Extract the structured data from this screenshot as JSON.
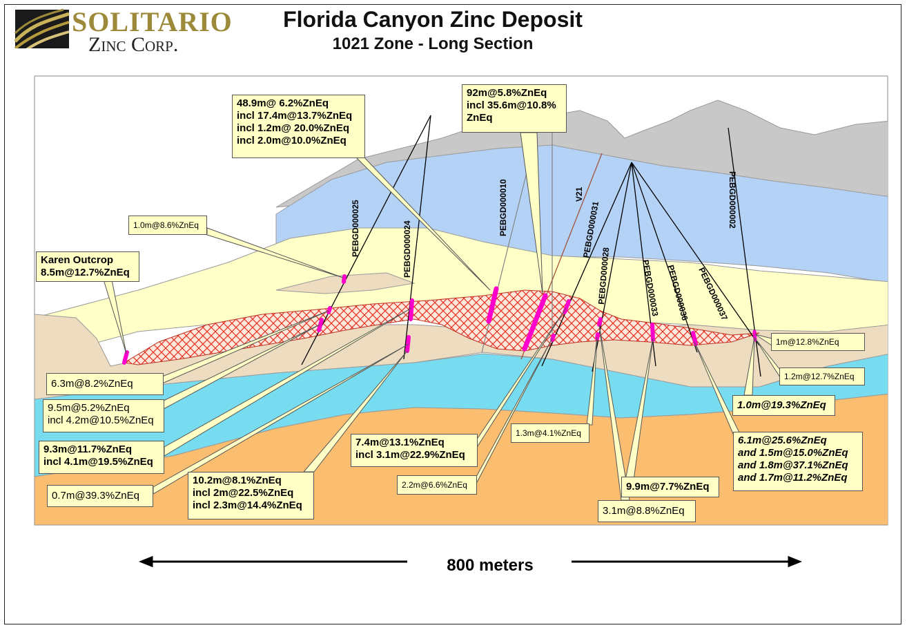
{
  "header": {
    "logo_line1": "SOLITARIO",
    "logo_line2": "Zinc Corp.",
    "title": "Florida Canyon Zinc Deposit",
    "subtitle": "1021 Zone - Long Section"
  },
  "drill_holes": [
    "PEBGD000025",
    "PEBGD000024",
    "PEBGD000010",
    "V21",
    "PEBGD000031",
    "PEBGD000028",
    "PEBGD000033",
    "PEBGD000036",
    "PEBGD000037",
    "PEBGD000002"
  ],
  "callouts": {
    "c489": "48.9m@ 6.2%ZnEq\nincl 17.4m@13.7%ZnEq\nincl 1.2m@ 20.0%ZnEq\nincl 2.0m@10.0%ZnEq",
    "c92": "92m@5.8%ZnEq\nincl 35.6m@10.8%\nZnEq",
    "c10_86": "1.0m@8.6%ZnEq",
    "karen": "Karen Outcrop\n8.5m@12.7%ZnEq",
    "c63": "6.3m@8.2%ZnEq",
    "c95": "9.5m@5.2%ZnEq\nincl 4.2m@10.5%ZnEq",
    "c93": "9.3m@11.7%ZnEq\nincl 4.1m@19.5%ZnEq",
    "c07": "0.7m@39.3%ZnEq",
    "c102": "10.2m@8.1%ZnEq\nincl 2m@22.5%ZnEq\nincl 2.3m@14.4%ZnEq",
    "c74": "7.4m@13.1%ZnEq\nincl 3.1m@22.9%ZnEq",
    "c22": "2.2m@6.6%ZnEq",
    "c13": "1.3m@4.1%ZnEq",
    "c99": "9.9m@7.7%ZnEq",
    "c31": "3.1m@8.8%ZnEq",
    "c61": "6.1m@25.6%ZnEq\nand 1.5m@15.0%ZnEq\nand 1.8m@37.1%ZnEq\nand 1.7m@11.2%ZnEq",
    "c10_193": "1.0m@19.3%ZnEq",
    "c10_128": "1m@12.8%ZnEq",
    "c12": "1.2m@12.7%ZnEq"
  },
  "scale_bar": {
    "label": "800 meters"
  },
  "colors": {
    "gray_layer": "#c8c8c8",
    "blue_layer": "#b4d2f5",
    "yellow_layer": "#ffffc8",
    "tan_layer": "#eedcc0",
    "cyan_layer": "#78dcf0",
    "orange_layer": "#fbbd6f",
    "ore_hatch": "#e03020",
    "intercept": "#ff00cc"
  }
}
